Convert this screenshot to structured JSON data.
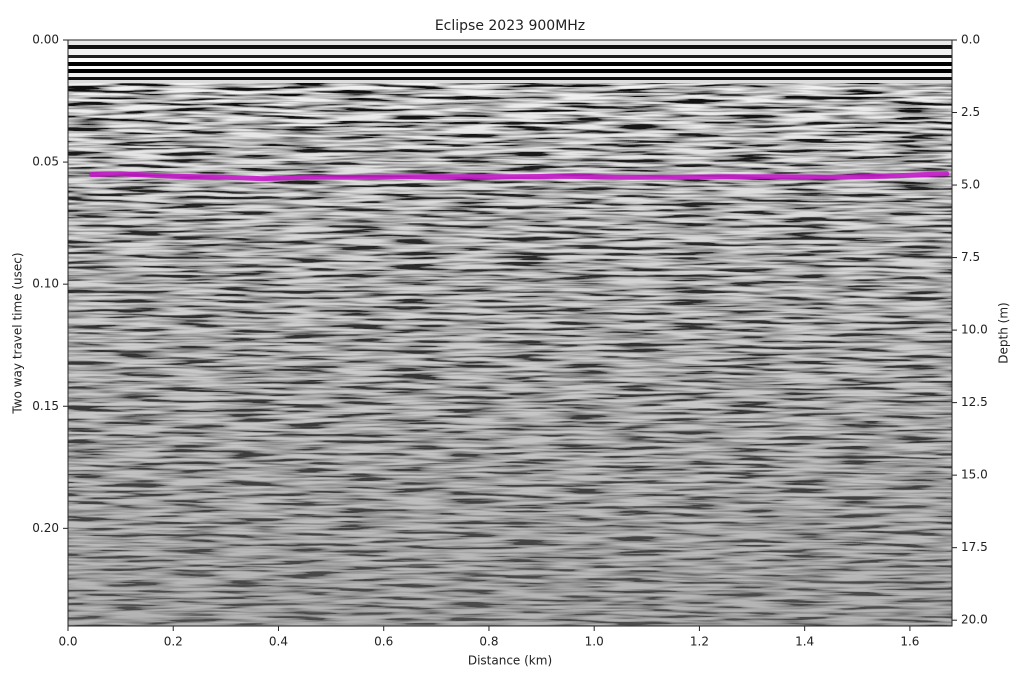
{
  "chart_data": {
    "type": "line",
    "title": "Eclipse 2023 900MHz",
    "x_label": "Distance (km)",
    "y_label": "Two way travel time (usec)",
    "y2_label": "Depth (m)",
    "xlim": [
      0,
      1.68
    ],
    "xticks": [
      {
        "value": 0,
        "label": "0.0"
      },
      0.2,
      0.4,
      0.6,
      0.8,
      {
        "value": 1,
        "label": "1.0"
      },
      1.2,
      1.4,
      1.6
    ],
    "ylim": [
      0,
      0.24
    ],
    "yticks": [
      {
        "value": 0,
        "label": "0.00"
      },
      0.05,
      {
        "value": 0.1,
        "label": "0.10"
      },
      0.15,
      {
        "value": 0.2,
        "label": "0.20"
      }
    ],
    "y_inverted": true,
    "y2lim": [
      0,
      20.2
    ],
    "y2ticks": [
      {
        "value": 0,
        "label": "0.0"
      },
      2.5,
      {
        "value": 5,
        "label": "5.0"
      },
      7.5,
      {
        "value": 10,
        "label": "10.0"
      },
      12.5,
      {
        "value": 15,
        "label": "15.0"
      },
      17.5,
      {
        "value": 20,
        "label": "20.0"
      }
    ],
    "x": [
      0.045,
      0.1,
      0.2,
      0.3,
      0.37,
      0.45,
      0.55,
      0.65,
      0.75,
      0.85,
      0.95,
      1.05,
      1.15,
      1.25,
      1.35,
      1.45,
      1.55,
      1.62,
      1.67
    ],
    "series": [
      {
        "color": "#c218c8",
        "values": [
          0.0551,
          0.0548,
          0.0558,
          0.0562,
          0.0568,
          0.0562,
          0.0562,
          0.056,
          0.056,
          0.056,
          0.0558,
          0.0562,
          0.0562,
          0.056,
          0.056,
          0.0562,
          0.0558,
          0.0552,
          0.0548
        ]
      }
    ]
  }
}
